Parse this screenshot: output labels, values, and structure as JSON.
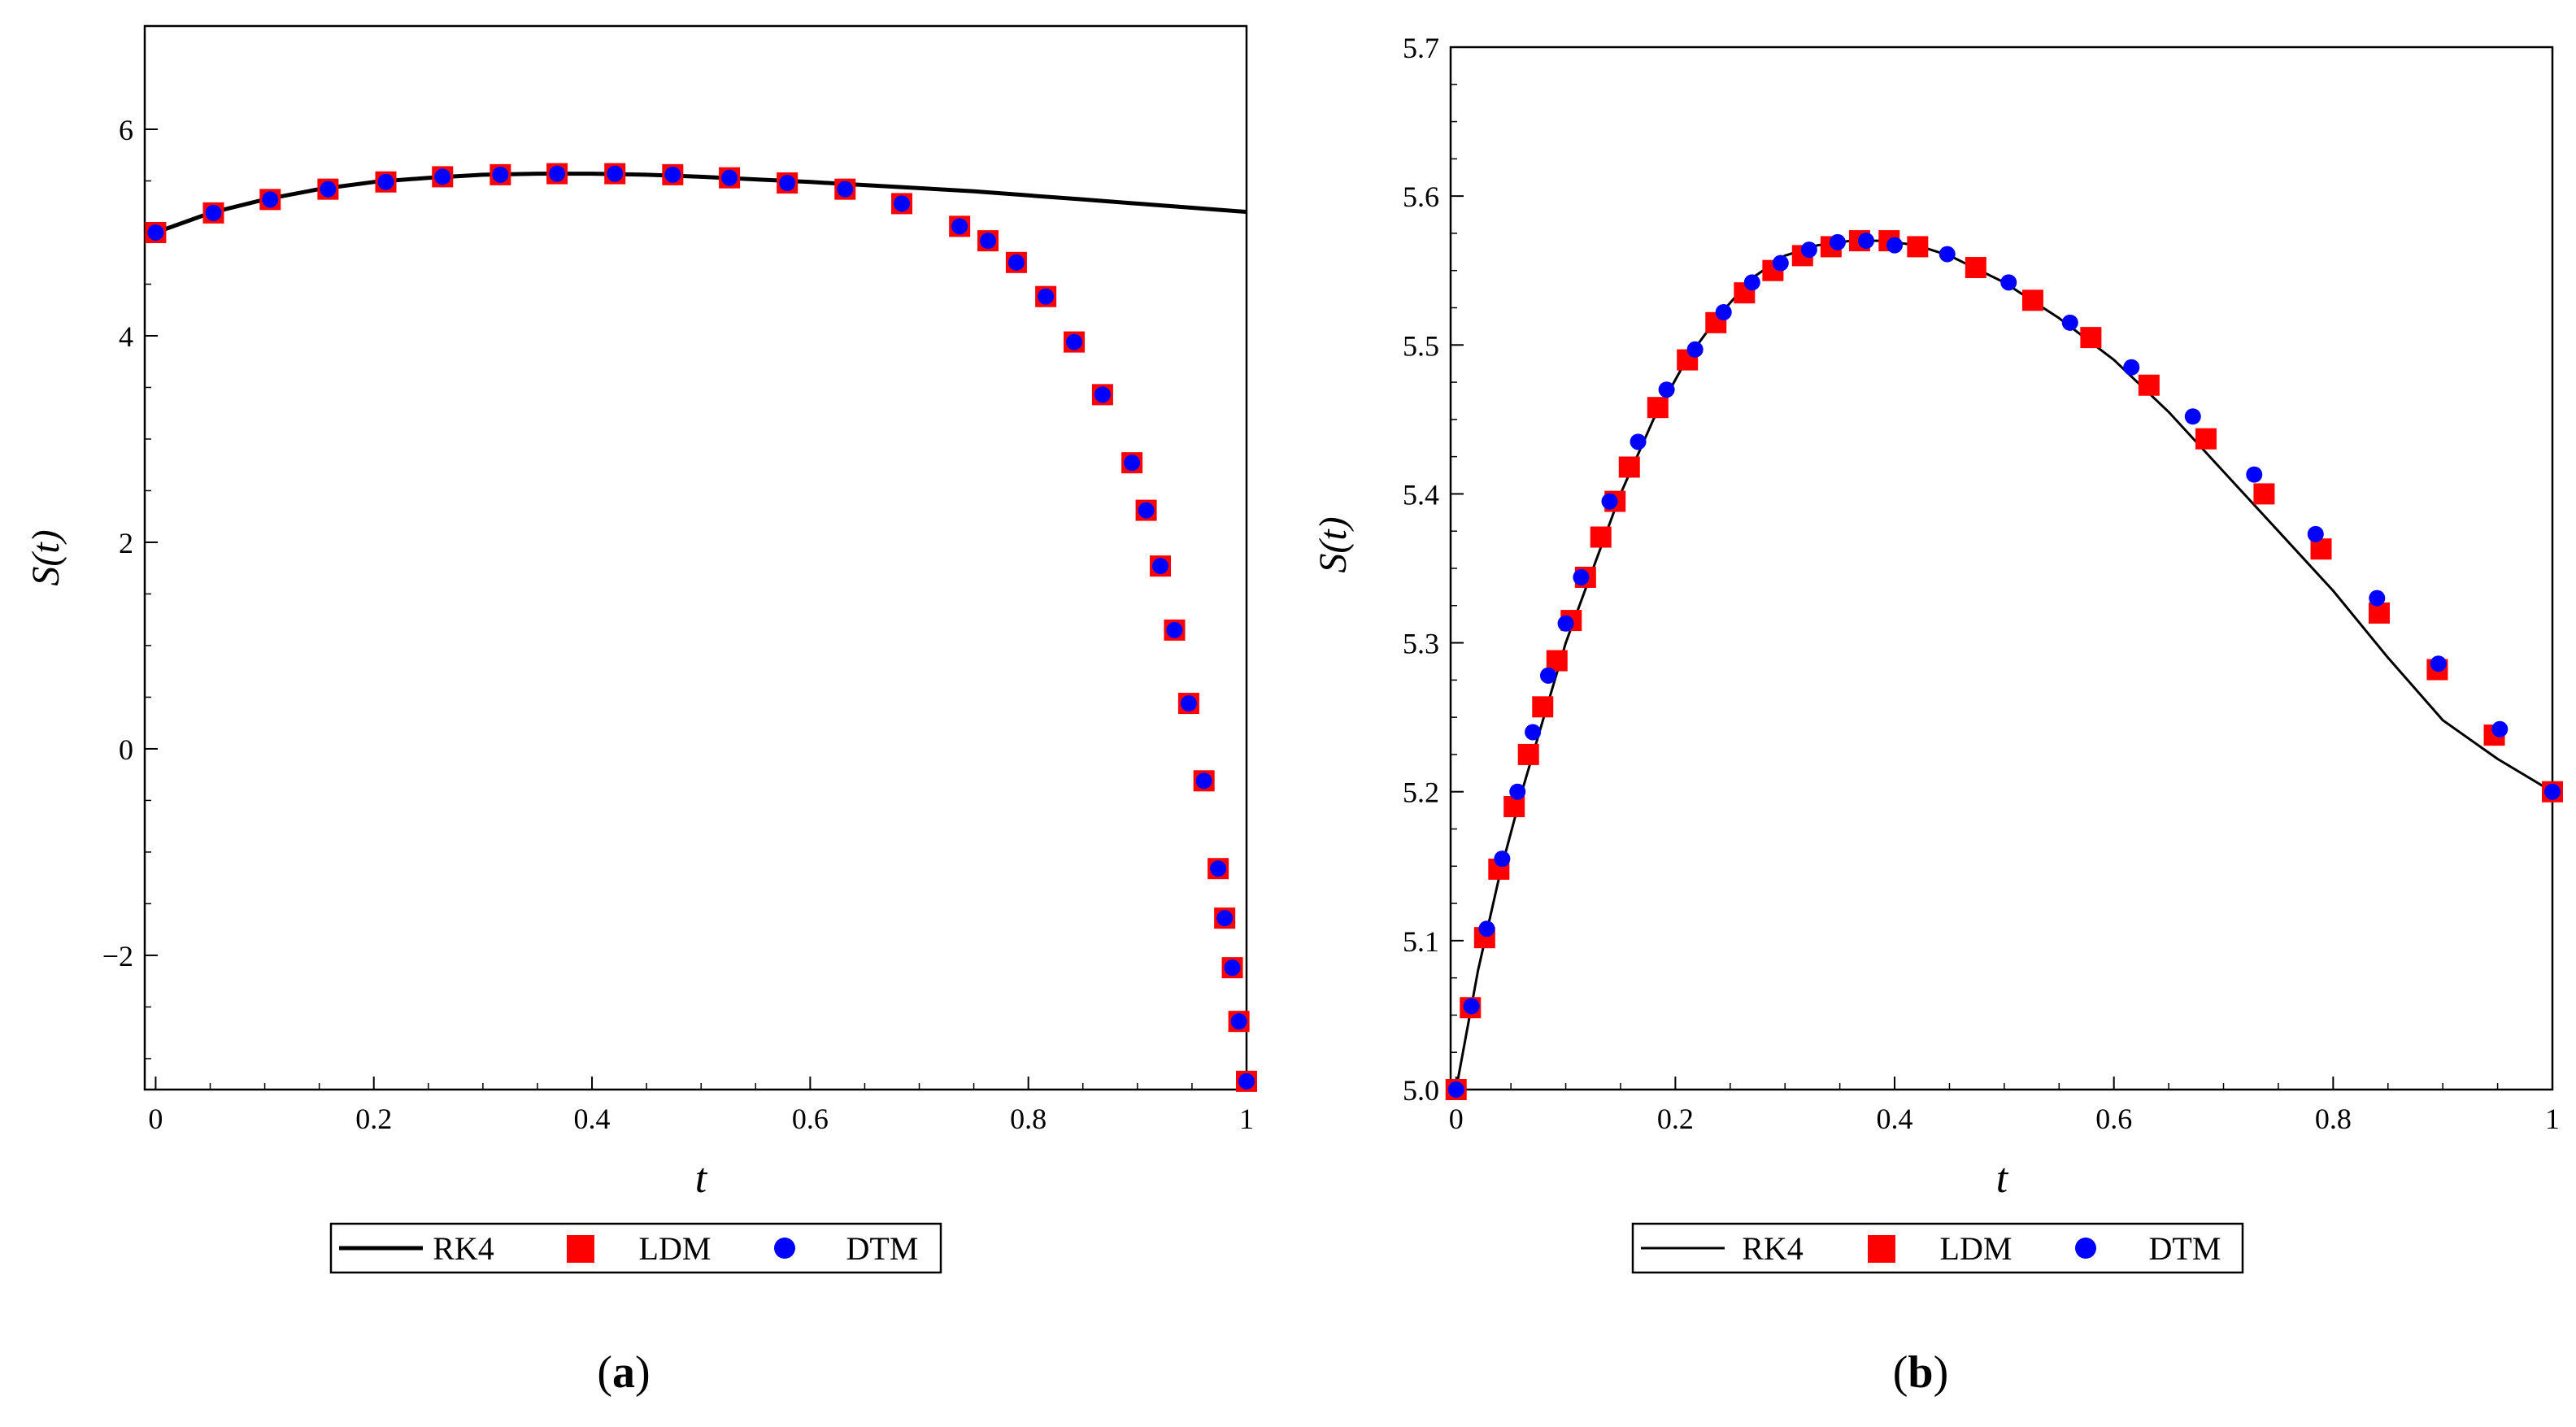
{
  "chart_data": [
    {
      "panel_label": "a",
      "type": "line",
      "xlabel": "t",
      "ylabel": "S(t)",
      "xlim": [
        -0.01,
        1.0
      ],
      "ylim": [
        -3.3,
        7.0
      ],
      "x_ticks": [
        0,
        0.2,
        0.4,
        0.6,
        0.8,
        1
      ],
      "x_tick_labels": [
        "0",
        "0.2",
        "0.4",
        "0.6",
        "0.8",
        "1"
      ],
      "y_ticks": [
        -2,
        0,
        2,
        4,
        6
      ],
      "y_tick_labels": [
        "−2",
        "0",
        "2",
        "4",
        "6"
      ],
      "legend": [
        "RK4",
        "LDM",
        "DTM"
      ],
      "series": [
        {
          "name": "RK4",
          "style": "line",
          "color": "#000000",
          "x": [
            0,
            0.05,
            0.1,
            0.15,
            0.2,
            0.25,
            0.3,
            0.35,
            0.4,
            0.45,
            0.5,
            0.55,
            0.6,
            0.65,
            0.7,
            0.75,
            0.8,
            0.85,
            0.9,
            0.95,
            1.0
          ],
          "y": [
            5.0,
            5.19,
            5.32,
            5.42,
            5.49,
            5.53,
            5.56,
            5.57,
            5.57,
            5.56,
            5.54,
            5.515,
            5.49,
            5.46,
            5.43,
            5.4,
            5.36,
            5.32,
            5.28,
            5.24,
            5.2
          ]
        },
        {
          "name": "LDM",
          "style": "square",
          "color": "#ff0000",
          "x": [
            0,
            0.053,
            0.105,
            0.158,
            0.211,
            0.263,
            0.316,
            0.368,
            0.421,
            0.474,
            0.526,
            0.579,
            0.632,
            0.684,
            0.737,
            0.763,
            0.789,
            0.816,
            0.842,
            0.868,
            0.895,
            0.908,
            0.921,
            0.934,
            0.947,
            0.961,
            0.974,
            0.98,
            0.987,
            0.993,
            1.0
          ],
          "y": [
            5.0,
            5.19,
            5.32,
            5.42,
            5.49,
            5.54,
            5.56,
            5.57,
            5.57,
            5.56,
            5.53,
            5.48,
            5.42,
            5.28,
            5.06,
            4.92,
            4.71,
            4.38,
            3.94,
            3.43,
            2.77,
            2.31,
            1.77,
            1.15,
            0.44,
            -0.31,
            -1.16,
            -1.64,
            -2.12,
            -2.64,
            -3.22
          ]
        },
        {
          "name": "DTM",
          "style": "circle",
          "color": "#0000ff",
          "x": [
            0,
            0.053,
            0.105,
            0.158,
            0.211,
            0.263,
            0.316,
            0.368,
            0.421,
            0.474,
            0.526,
            0.579,
            0.632,
            0.684,
            0.737,
            0.763,
            0.789,
            0.816,
            0.842,
            0.868,
            0.895,
            0.908,
            0.921,
            0.934,
            0.947,
            0.961,
            0.974,
            0.98,
            0.987,
            0.993,
            1.0
          ],
          "y": [
            5.0,
            5.19,
            5.32,
            5.42,
            5.49,
            5.54,
            5.56,
            5.57,
            5.57,
            5.56,
            5.53,
            5.48,
            5.42,
            5.28,
            5.06,
            4.92,
            4.71,
            4.38,
            3.94,
            3.43,
            2.77,
            2.31,
            1.77,
            1.15,
            0.44,
            -0.31,
            -1.16,
            -1.64,
            -2.12,
            -2.64,
            -3.22
          ]
        }
      ]
    },
    {
      "panel_label": "b",
      "type": "line",
      "xlabel": "t",
      "ylabel": "S(t)",
      "xlim": [
        -0.005,
        1.0
      ],
      "ylim": [
        5.0,
        5.7
      ],
      "x_ticks": [
        0,
        0.2,
        0.4,
        0.6,
        0.8,
        1
      ],
      "x_tick_labels": [
        "0",
        "0.2",
        "0.4",
        "0.6",
        "0.8",
        "1"
      ],
      "y_ticks": [
        5.0,
        5.1,
        5.2,
        5.3,
        5.4,
        5.5,
        5.6,
        5.7
      ],
      "y_tick_labels": [
        "5.0",
        "5.1",
        "5.2",
        "5.3",
        "5.4",
        "5.5",
        "5.6",
        "5.7"
      ],
      "legend": [
        "RK4",
        "LDM",
        "DTM"
      ],
      "series": [
        {
          "name": "RK4",
          "style": "line",
          "color": "#000000",
          "x": [
            0,
            0.02,
            0.04,
            0.06,
            0.08,
            0.1,
            0.12,
            0.15,
            0.18,
            0.21,
            0.24,
            0.27,
            0.3,
            0.33,
            0.36,
            0.39,
            0.42,
            0.45,
            0.5,
            0.55,
            0.6,
            0.65,
            0.7,
            0.75,
            0.8,
            0.85,
            0.9,
            0.95,
            1.0
          ],
          "y": [
            5.0,
            5.08,
            5.145,
            5.2,
            5.25,
            5.3,
            5.34,
            5.4,
            5.45,
            5.49,
            5.52,
            5.545,
            5.56,
            5.567,
            5.57,
            5.57,
            5.567,
            5.56,
            5.542,
            5.518,
            5.49,
            5.455,
            5.415,
            5.375,
            5.335,
            5.29,
            5.248,
            5.222,
            5.2
          ]
        },
        {
          "name": "LDM",
          "style": "square",
          "color": "#ff0000",
          "x": [
            0,
            0.013,
            0.026,
            0.039,
            0.053,
            0.066,
            0.079,
            0.092,
            0.105,
            0.118,
            0.132,
            0.145,
            0.158,
            0.184,
            0.211,
            0.237,
            0.263,
            0.289,
            0.316,
            0.342,
            0.368,
            0.395,
            0.421,
            0.474,
            0.526,
            0.579,
            0.632,
            0.684,
            0.737,
            0.789,
            0.842,
            0.895,
            0.947,
            1.0
          ],
          "y": [
            5.0,
            5.055,
            5.102,
            5.148,
            5.19,
            5.225,
            5.257,
            5.288,
            5.315,
            5.344,
            5.371,
            5.395,
            5.418,
            5.458,
            5.49,
            5.515,
            5.535,
            5.55,
            5.56,
            5.566,
            5.57,
            5.57,
            5.566,
            5.552,
            5.53,
            5.505,
            5.473,
            5.437,
            5.4,
            5.363,
            5.32,
            5.282,
            5.238,
            5.2
          ]
        },
        {
          "name": "DTM",
          "style": "circle",
          "color": "#0000ff",
          "x": [
            0,
            0.014,
            0.028,
            0.042,
            0.056,
            0.07,
            0.084,
            0.1,
            0.114,
            0.14,
            0.166,
            0.192,
            0.218,
            0.244,
            0.27,
            0.296,
            0.322,
            0.348,
            0.374,
            0.4,
            0.448,
            0.504,
            0.56,
            0.616,
            0.672,
            0.728,
            0.784,
            0.84,
            0.896,
            0.952,
            1.0
          ],
          "y": [
            5.0,
            5.056,
            5.108,
            5.155,
            5.2,
            5.24,
            5.278,
            5.313,
            5.344,
            5.395,
            5.435,
            5.47,
            5.497,
            5.522,
            5.542,
            5.555,
            5.564,
            5.569,
            5.57,
            5.567,
            5.561,
            5.542,
            5.515,
            5.485,
            5.452,
            5.413,
            5.373,
            5.33,
            5.286,
            5.242,
            5.2
          ]
        }
      ]
    }
  ]
}
